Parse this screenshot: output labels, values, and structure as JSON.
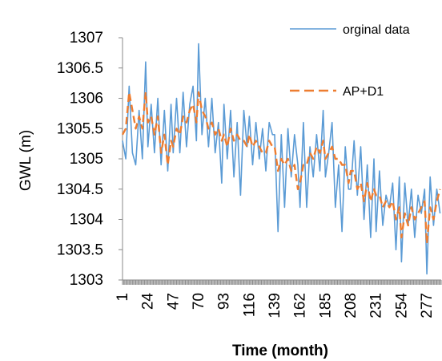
{
  "chart_data": {
    "type": "line",
    "title": "",
    "xlabel": "Time (month)",
    "ylabel": "GWL (m)",
    "ylim": [
      1303,
      1307
    ],
    "yticks": [
      "1303",
      "1303.5",
      "1304",
      "1304.5",
      "1305",
      "1305.5",
      "1306",
      "1306.5",
      "1307"
    ],
    "xlim": [
      1,
      290
    ],
    "xticks": [
      "1",
      "24",
      "47",
      "70",
      "93",
      "116",
      "139",
      "162",
      "185",
      "208",
      "231",
      "254",
      "277"
    ],
    "grid": false,
    "legend_position": "top-right",
    "series": [
      {
        "name": "orginal data",
        "color": "#5b9bd5",
        "style": "solid",
        "x": [
          1,
          4,
          7,
          10,
          13,
          16,
          19,
          22,
          24,
          27,
          30,
          33,
          36,
          39,
          42,
          45,
          47,
          50,
          53,
          56,
          59,
          62,
          65,
          68,
          70,
          73,
          76,
          79,
          82,
          85,
          88,
          91,
          93,
          96,
          99,
          102,
          105,
          108,
          111,
          114,
          116,
          119,
          122,
          125,
          128,
          131,
          134,
          137,
          139,
          142,
          145,
          148,
          151,
          154,
          157,
          160,
          162,
          165,
          168,
          171,
          174,
          177,
          180,
          183,
          185,
          188,
          191,
          194,
          197,
          200,
          203,
          206,
          208,
          211,
          214,
          217,
          220,
          223,
          226,
          229,
          231,
          234,
          237,
          240,
          243,
          246,
          249,
          252,
          254,
          257,
          260,
          263,
          266,
          269,
          272,
          275,
          277,
          280,
          283,
          286,
          289
        ],
        "y": [
          1305.3,
          1305.0,
          1306.2,
          1305.1,
          1304.9,
          1305.8,
          1305.0,
          1306.6,
          1305.2,
          1305.9,
          1305.1,
          1306.0,
          1304.9,
          1305.8,
          1304.8,
          1305.9,
          1305.1,
          1306.0,
          1305.1,
          1306.1,
          1305.2,
          1305.9,
          1306.2,
          1305.3,
          1306.9,
          1305.4,
          1306.0,
          1305.2,
          1306.0,
          1305.1,
          1305.6,
          1304.6,
          1305.9,
          1305.0,
          1305.8,
          1304.7,
          1305.6,
          1304.4,
          1305.8,
          1305.2,
          1305.7,
          1304.9,
          1305.6,
          1305.0,
          1305.5,
          1304.8,
          1305.6,
          1305.4,
          1305.4,
          1303.8,
          1305.4,
          1304.2,
          1305.5,
          1304.7,
          1305.4,
          1304.9,
          1304.2,
          1305.6,
          1304.2,
          1305.2,
          1304.7,
          1305.4,
          1304.8,
          1305.8,
          1304.7,
          1305.1,
          1305.6,
          1304.2,
          1304.9,
          1303.8,
          1305.2,
          1304.5,
          1304.5,
          1305.3,
          1304.4,
          1305.2,
          1304.0,
          1304.9,
          1303.7,
          1305.0,
          1303.8,
          1304.8,
          1303.9,
          1304.4,
          1304.2,
          1304.6,
          1303.5,
          1304.7,
          1303.3,
          1304.6,
          1303.9,
          1304.5,
          1303.7,
          1304.4,
          1304.1,
          1304.5,
          1303.1,
          1304.7,
          1303.9,
          1304.5,
          1304.1
        ]
      },
      {
        "name": "AP+D1",
        "color": "#ed7d31",
        "style": "dashed",
        "x": [
          1,
          4,
          7,
          10,
          13,
          16,
          19,
          22,
          24,
          27,
          30,
          33,
          36,
          39,
          42,
          45,
          47,
          50,
          53,
          56,
          59,
          62,
          65,
          68,
          70,
          73,
          76,
          79,
          82,
          85,
          88,
          91,
          93,
          96,
          99,
          102,
          105,
          108,
          111,
          114,
          116,
          119,
          122,
          125,
          128,
          131,
          134,
          137,
          139,
          142,
          145,
          148,
          151,
          154,
          157,
          160,
          162,
          165,
          168,
          171,
          174,
          177,
          180,
          183,
          185,
          188,
          191,
          194,
          197,
          200,
          203,
          206,
          208,
          211,
          214,
          217,
          220,
          223,
          226,
          229,
          231,
          234,
          237,
          240,
          243,
          246,
          249,
          252,
          254,
          257,
          260,
          263,
          266,
          269,
          272,
          275,
          277,
          280,
          283,
          286,
          289
        ],
        "y": [
          1305.4,
          1305.5,
          1306.1,
          1305.8,
          1305.5,
          1305.7,
          1305.5,
          1306.1,
          1305.6,
          1305.7,
          1305.4,
          1305.7,
          1305.1,
          1305.4,
          1304.9,
          1305.3,
          1305.2,
          1305.5,
          1305.4,
          1305.7,
          1305.6,
          1305.8,
          1305.9,
          1305.6,
          1306.1,
          1305.8,
          1305.7,
          1305.5,
          1305.6,
          1305.4,
          1305.5,
          1305.3,
          1305.4,
          1305.2,
          1305.5,
          1305.3,
          1305.4,
          1305.3,
          1305.3,
          1305.2,
          1305.4,
          1305.2,
          1305.3,
          1305.2,
          1305.1,
          1305.1,
          1305.3,
          1305.2,
          1305.2,
          1304.8,
          1305.0,
          1304.9,
          1305.0,
          1304.8,
          1304.9,
          1304.5,
          1304.6,
          1304.9,
          1304.9,
          1305.1,
          1305.0,
          1305.2,
          1305.1,
          1305.3,
          1305.0,
          1305.1,
          1305.2,
          1305.0,
          1305.0,
          1304.9,
          1304.9,
          1304.6,
          1304.8,
          1304.8,
          1304.5,
          1304.6,
          1304.3,
          1304.6,
          1304.3,
          1304.5,
          1304.4,
          1304.4,
          1304.2,
          1304.3,
          1304.2,
          1304.3,
          1304.0,
          1304.2,
          1303.7,
          1304.1,
          1303.9,
          1304.2,
          1304.0,
          1304.1,
          1304.2,
          1304.3,
          1303.6,
          1304.2,
          1304.0,
          1304.3,
          1304.5
        ]
      }
    ]
  }
}
